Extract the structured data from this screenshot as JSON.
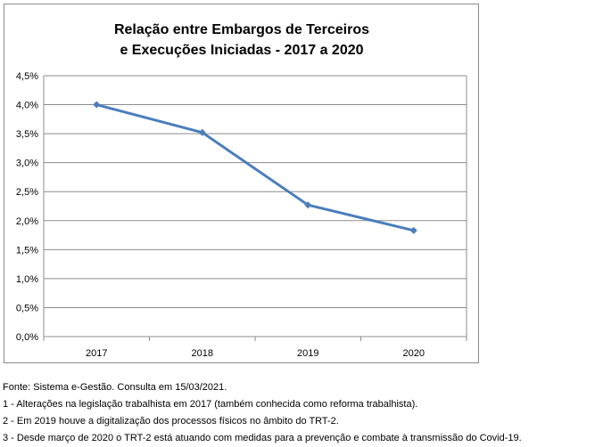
{
  "chart_data": {
    "type": "line",
    "title": [
      "Relação entre Embargos de Terceiros",
      "e Execuções Iniciadas - 2017 a 2020"
    ],
    "categories": [
      "2017",
      "2018",
      "2019",
      "2020"
    ],
    "series": [
      {
        "values": [
          4.0,
          3.52,
          2.27,
          1.83
        ]
      }
    ],
    "ylim": [
      0,
      4.5
    ],
    "y_ticks": [
      "0,0%",
      "0,5%",
      "1,0%",
      "1,5%",
      "2,0%",
      "2,5%",
      "3,0%",
      "3,5%",
      "4,0%",
      "4,5%"
    ],
    "grid": true,
    "legend": "none",
    "series_color": "#4a7ebb",
    "grid_color": "#8c8c8c"
  },
  "notes": [
    "Fonte: Sistema e-Gestão. Consulta em 15/03/2021.",
    "1 - Alterações na legislação trabalhista em 2017 (também conhecida como reforma trabalhista).",
    "2 - Em 2019 houve a digitalização dos processos físicos no âmbito do TRT-2.",
    "3 - Desde março de 2020 o TRT-2 está atuando com medidas para a prevenção e combate à transmissão do Covid-19."
  ]
}
